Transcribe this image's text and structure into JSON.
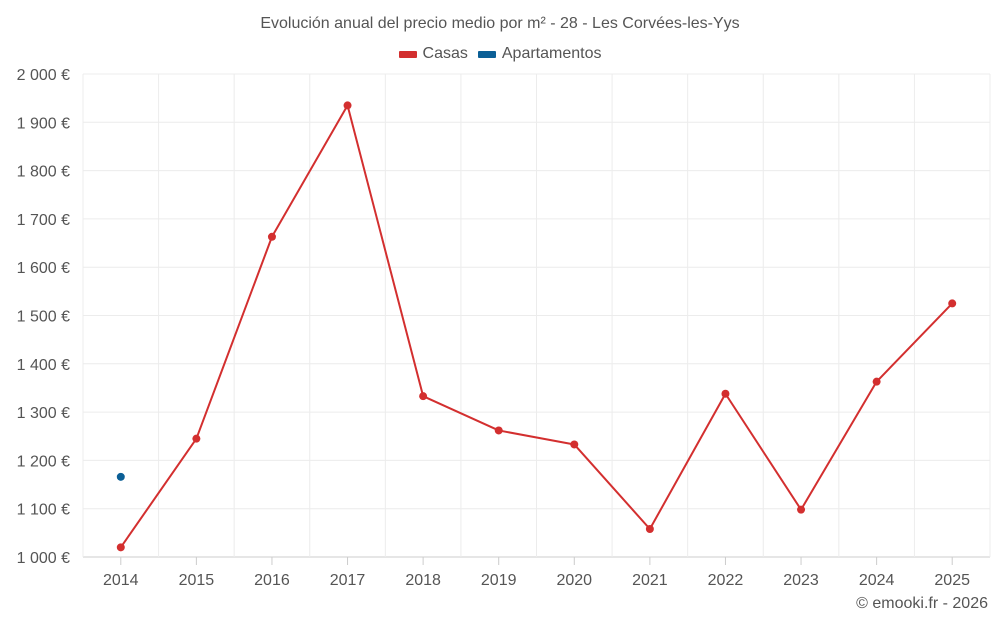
{
  "chart_data": {
    "type": "line",
    "title": "Evolución anual del precio medio por m² - 28 - Les Corvées-les-Yys",
    "categories": [
      "2014",
      "2015",
      "2016",
      "2017",
      "2018",
      "2019",
      "2020",
      "2021",
      "2022",
      "2023",
      "2024",
      "2025"
    ],
    "y_ticks": [
      "1 000 €",
      "1 100 €",
      "1 200 €",
      "1 300 €",
      "1 400 €",
      "1 500 €",
      "1 600 €",
      "1 700 €",
      "1 800 €",
      "1 900 €",
      "2 000 €"
    ],
    "ylim": [
      1000,
      2000
    ],
    "grid": true,
    "legend_position": "top",
    "series": [
      {
        "name": "Casas",
        "color": "#d32f2f",
        "values": [
          1020,
          1245,
          1663,
          1935,
          1333,
          1262,
          1233,
          1058,
          1338,
          1098,
          1363,
          1525
        ]
      },
      {
        "name": "Apartamentos",
        "color": "#0b5f96",
        "values": [
          1166,
          null,
          null,
          null,
          null,
          null,
          null,
          null,
          null,
          null,
          null,
          null
        ]
      }
    ]
  },
  "credit": "© emooki.fr - 2026"
}
